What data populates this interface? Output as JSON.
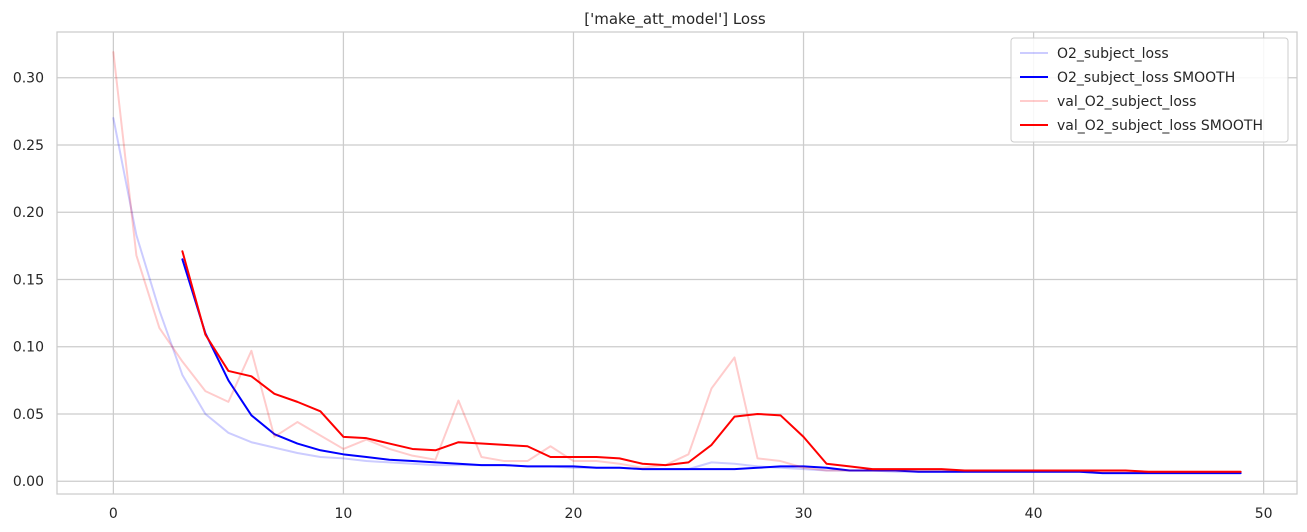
{
  "chart_data": {
    "type": "line",
    "title": "['make_att_model'] Loss",
    "xlabel": "",
    "ylabel": "",
    "xlim": [
      -2.45,
      51.45
    ],
    "ylim": [
      -0.0095,
      0.334
    ],
    "x_ticks": [
      0,
      10,
      20,
      30,
      40,
      50
    ],
    "y_ticks": [
      0.0,
      0.05,
      0.1,
      0.15,
      0.2,
      0.25,
      0.3
    ],
    "y_tick_labels": [
      "0.00",
      "0.05",
      "0.10",
      "0.15",
      "0.20",
      "0.25",
      "0.30"
    ],
    "grid": true,
    "legend_position": "top-right",
    "series": [
      {
        "name": "O2_subject_loss",
        "color": "#0000ff",
        "opacity": 0.2,
        "x_start": 0,
        "values": [
          0.27,
          0.183,
          0.127,
          0.079,
          0.05,
          0.036,
          0.029,
          0.025,
          0.021,
          0.018,
          0.017,
          0.015,
          0.014,
          0.013,
          0.012,
          0.012,
          0.012,
          0.012,
          0.011,
          0.011,
          0.01,
          0.01,
          0.01,
          0.009,
          0.009,
          0.009,
          0.014,
          0.013,
          0.011,
          0.01,
          0.009,
          0.008,
          0.008,
          0.008,
          0.007,
          0.007,
          0.007,
          0.007,
          0.007,
          0.007,
          0.007,
          0.007,
          0.007,
          0.006,
          0.006,
          0.006,
          0.006,
          0.006,
          0.006,
          0.006
        ]
      },
      {
        "name": "O2_subject_loss SMOOTH",
        "color": "#0000ff",
        "opacity": 1.0,
        "x_start": 3,
        "values": [
          0.165,
          0.11,
          0.075,
          0.049,
          0.035,
          0.028,
          0.023,
          0.02,
          0.018,
          0.016,
          0.015,
          0.014,
          0.013,
          0.012,
          0.012,
          0.011,
          0.011,
          0.011,
          0.01,
          0.01,
          0.009,
          0.009,
          0.009,
          0.009,
          0.009,
          0.01,
          0.011,
          0.011,
          0.01,
          0.008,
          0.008,
          0.008,
          0.007,
          0.007,
          0.007,
          0.007,
          0.007,
          0.007,
          0.007,
          0.007,
          0.006,
          0.006,
          0.006,
          0.006,
          0.006,
          0.006,
          0.006
        ]
      },
      {
        "name": "val_O2_subject_loss",
        "color": "#ff0000",
        "opacity": 0.2,
        "x_start": 0,
        "values": [
          0.319,
          0.168,
          0.114,
          0.089,
          0.067,
          0.059,
          0.097,
          0.033,
          0.044,
          0.034,
          0.024,
          0.031,
          0.024,
          0.019,
          0.016,
          0.06,
          0.018,
          0.015,
          0.015,
          0.026,
          0.015,
          0.015,
          0.013,
          0.01,
          0.012,
          0.02,
          0.069,
          0.092,
          0.017,
          0.015,
          0.01,
          0.008,
          0.008,
          0.008,
          0.008,
          0.008,
          0.008,
          0.008,
          0.008,
          0.008,
          0.008,
          0.008,
          0.008,
          0.007,
          0.007,
          0.007,
          0.007,
          0.007,
          0.007,
          0.007
        ]
      },
      {
        "name": "val_O2_subject_loss SMOOTH",
        "color": "#ff0000",
        "opacity": 1.0,
        "x_start": 3,
        "values": [
          0.171,
          0.109,
          0.082,
          0.078,
          0.065,
          0.059,
          0.052,
          0.033,
          0.032,
          0.028,
          0.024,
          0.023,
          0.029,
          0.028,
          0.027,
          0.026,
          0.018,
          0.018,
          0.018,
          0.017,
          0.013,
          0.012,
          0.014,
          0.027,
          0.048,
          0.05,
          0.049,
          0.033,
          0.013,
          0.011,
          0.009,
          0.009,
          0.009,
          0.009,
          0.008,
          0.008,
          0.008,
          0.008,
          0.008,
          0.008,
          0.008,
          0.008,
          0.007,
          0.007,
          0.007,
          0.007,
          0.007
        ]
      }
    ]
  }
}
